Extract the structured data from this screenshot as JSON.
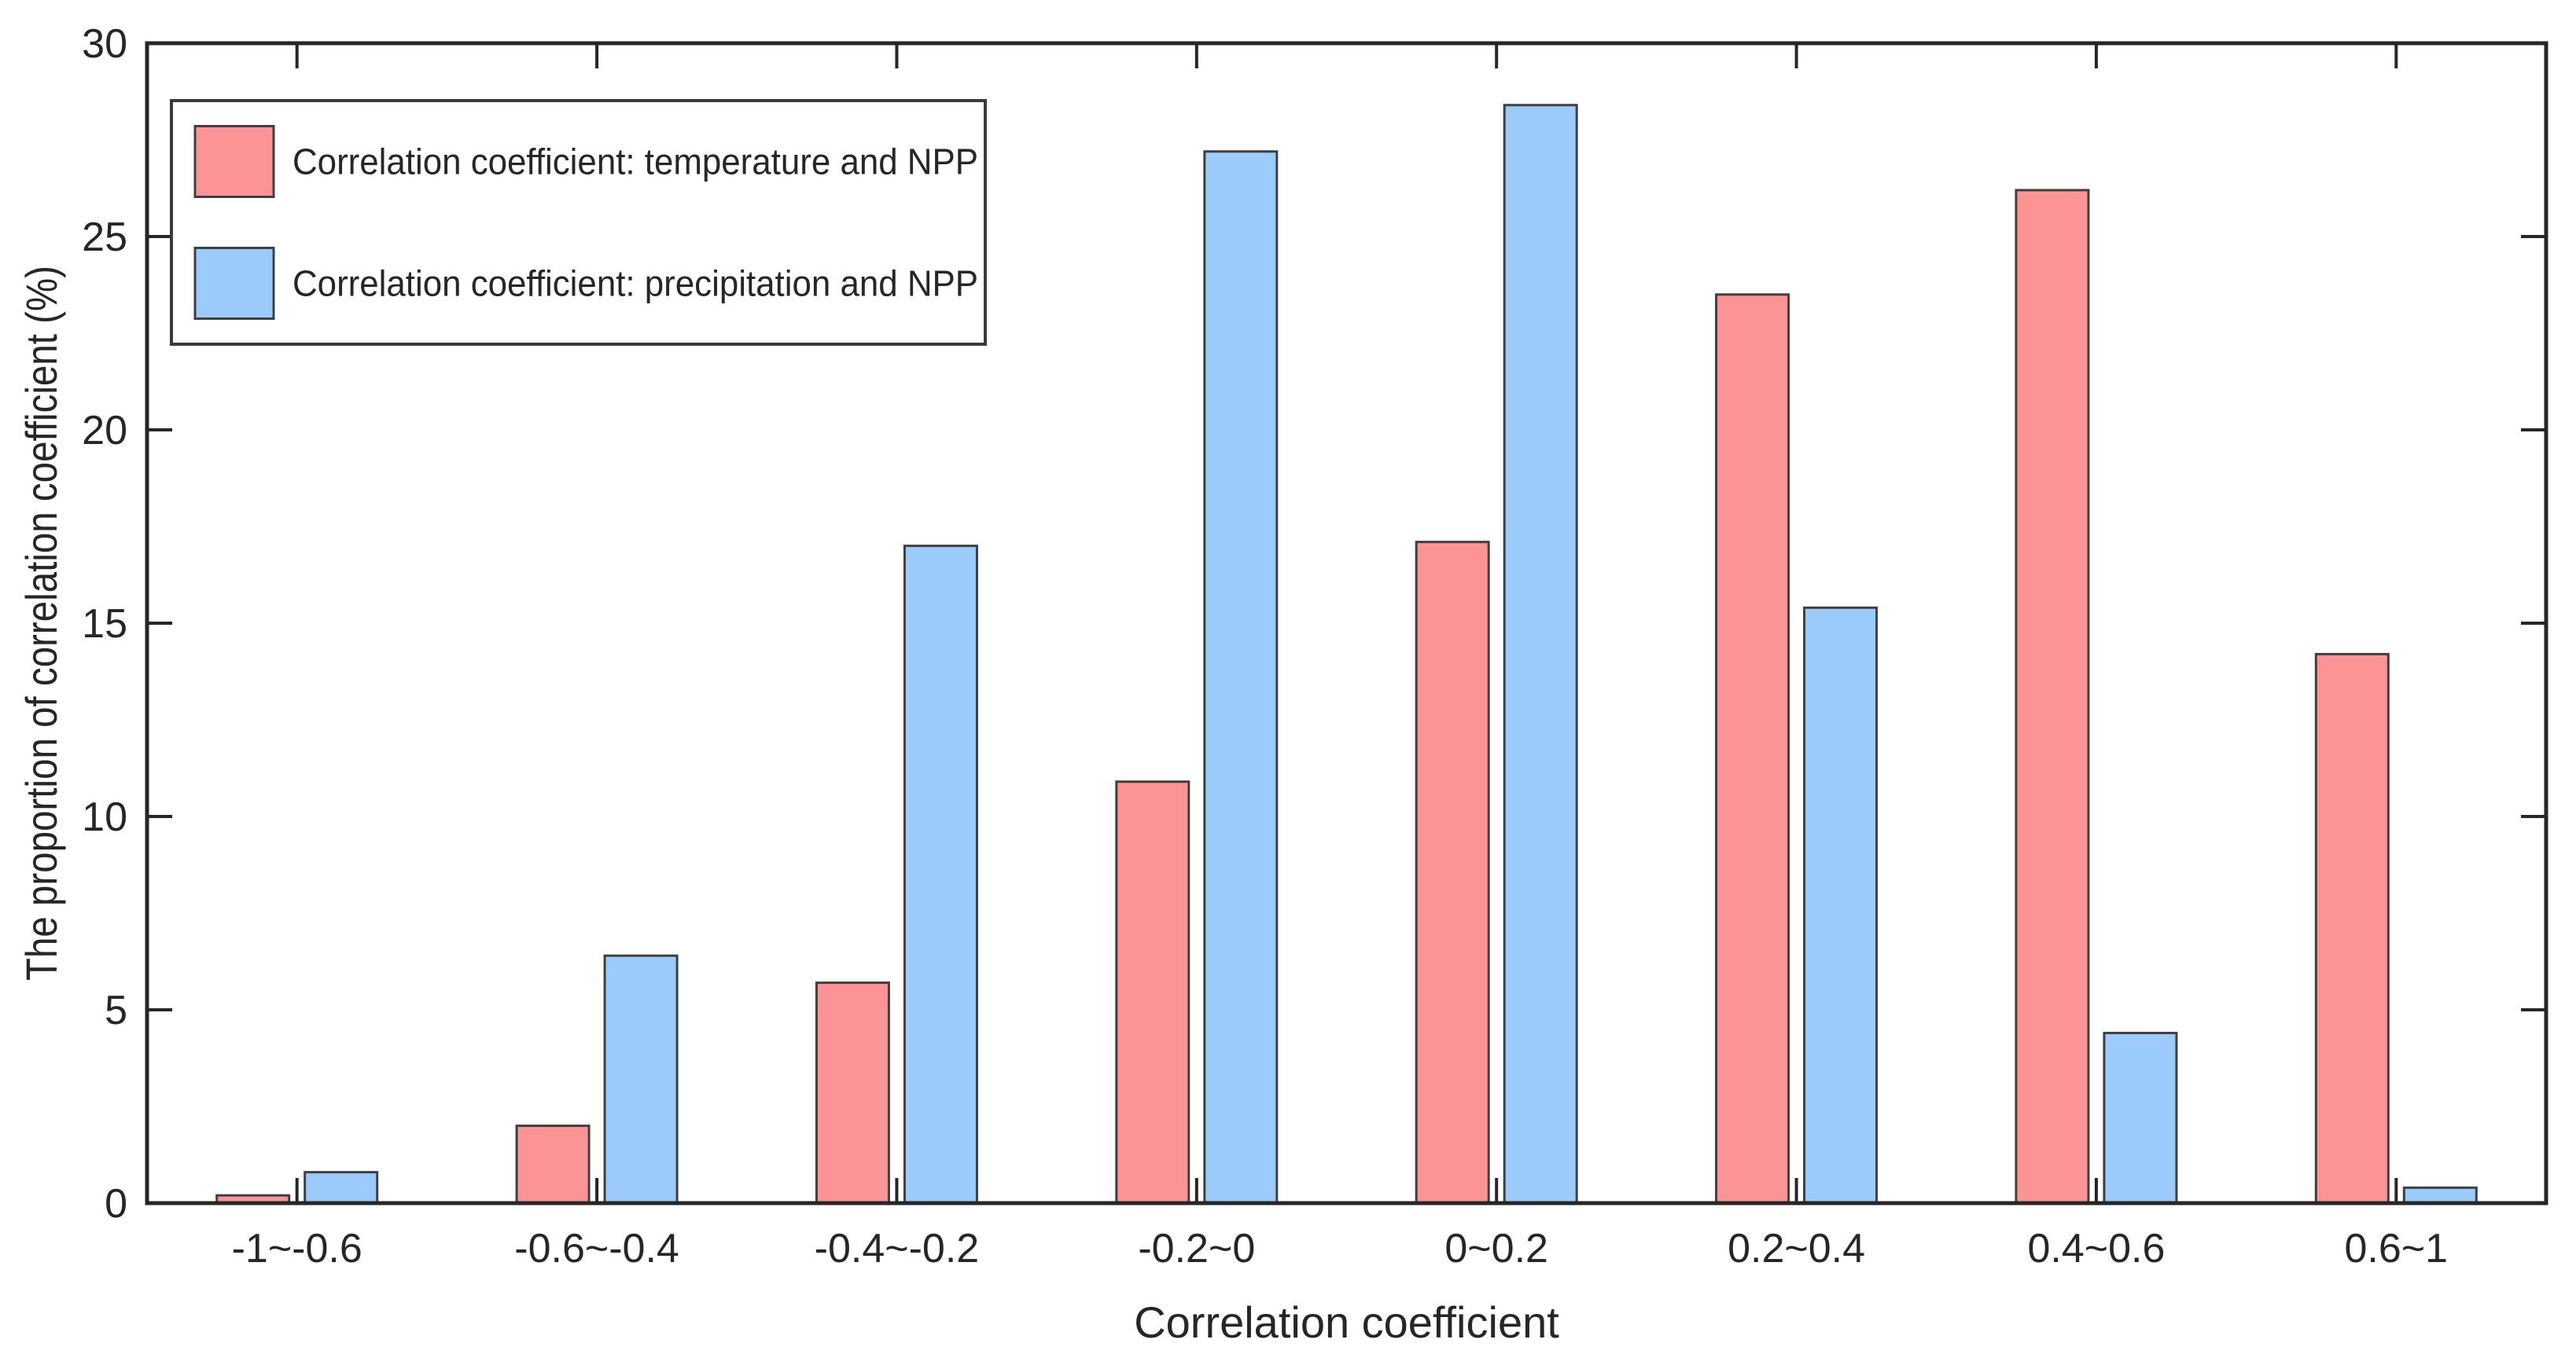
{
  "figure": {
    "background_color": "#ffffff",
    "axis_color": "#262626",
    "bar_edge_color": "#3f3f3f",
    "legend_border_color": "#3a3a3a",
    "legend_background": "#ffffff"
  },
  "chart_data": {
    "type": "bar",
    "title": "",
    "xlabel": "Correlation coefficient",
    "ylabel": "The proportion of correlation coefficient (%)",
    "categories": [
      "-1~-0.6",
      "-0.6~-0.4",
      "-0.4~-0.2",
      "-0.2~0",
      "0~0.2",
      "0.2~0.4",
      "0.4~0.6",
      "0.6~1"
    ],
    "series": [
      {
        "name": "Correlation coefficient: temperature and NPP",
        "color": "#fc9495",
        "values": [
          0.2,
          2.0,
          5.7,
          10.9,
          17.1,
          23.5,
          26.2,
          14.2
        ]
      },
      {
        "name": "Correlation coefficient: precipitation and NPP",
        "color": "#9bcbfa",
        "values": [
          0.8,
          6.4,
          17.0,
          27.2,
          28.4,
          15.4,
          4.4,
          0.4
        ]
      }
    ],
    "y_ticks": [
      0,
      5,
      10,
      15,
      20,
      25,
      30
    ],
    "ylim": [
      0,
      30
    ],
    "grid": false,
    "legend_position": "top-left",
    "bar_group_layout": "grouped-pair",
    "tick_direction": "in",
    "box": true
  }
}
